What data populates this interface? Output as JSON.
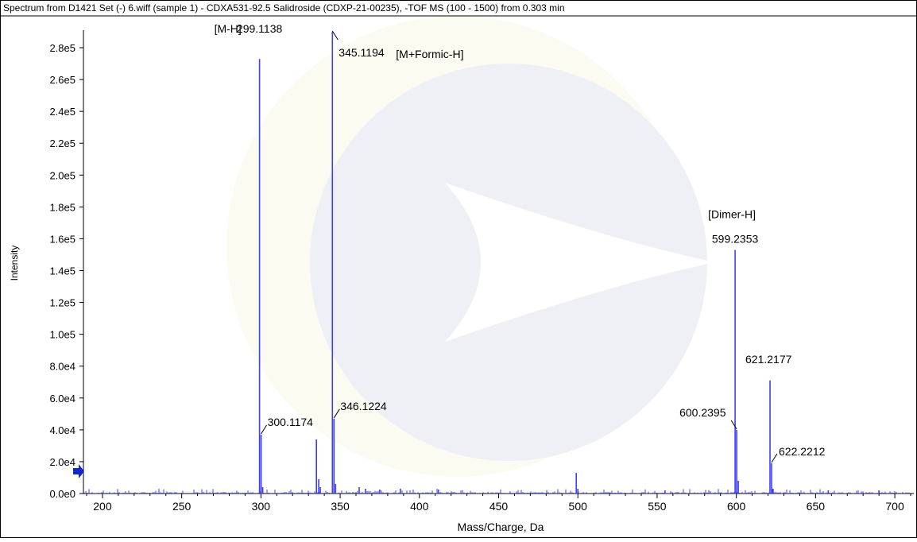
{
  "header": {
    "title": "Spectrum from D1421 Set (-) 6.wiff (sample 1) - CDXA531-92.5 Salidroside (CDXP-21-00235), -TOF MS (100 - 1500) from 0.303 min"
  },
  "colors": {
    "peak": "#3d3dff",
    "axis": "#000000",
    "text": "#000000",
    "marker": "#1428c8",
    "watermark": "#eef0f6"
  },
  "chart_data": {
    "type": "bar",
    "title": "",
    "xlabel": "Mass/Charge, Da",
    "ylabel": "Intensity",
    "xlim": [
      188,
      712
    ],
    "ylim": [
      0,
      290000
    ],
    "grid": false,
    "x_ticks": [
      200,
      250,
      300,
      350,
      400,
      450,
      500,
      550,
      600,
      650,
      700
    ],
    "y_ticks": [
      {
        "value": 0,
        "label": "0.0e0"
      },
      {
        "value": 20000,
        "label": "2.0e4"
      },
      {
        "value": 40000,
        "label": "4.0e4"
      },
      {
        "value": 60000,
        "label": "6.0e4"
      },
      {
        "value": 80000,
        "label": "8.0e4"
      },
      {
        "value": 100000,
        "label": "1.0e5"
      },
      {
        "value": 120000,
        "label": "1.2e5"
      },
      {
        "value": 140000,
        "label": "1.4e5"
      },
      {
        "value": 160000,
        "label": "1.6e5"
      },
      {
        "value": 180000,
        "label": "1.8e5"
      },
      {
        "value": 200000,
        "label": "2.0e5"
      },
      {
        "value": 220000,
        "label": "2.2e5"
      },
      {
        "value": 240000,
        "label": "2.4e5"
      },
      {
        "value": 260000,
        "label": "2.6e5"
      },
      {
        "value": 280000,
        "label": "2.8e5"
      }
    ],
    "marker_level": 14000,
    "peaks": [
      {
        "mz": 299.1138,
        "intensity": 273000
      },
      {
        "mz": 300.1174,
        "intensity": 37000
      },
      {
        "mz": 301.12,
        "intensity": 4000
      },
      {
        "mz": 335.0,
        "intensity": 34000
      },
      {
        "mz": 336.5,
        "intensity": 9000
      },
      {
        "mz": 337.5,
        "intensity": 4000
      },
      {
        "mz": 345.1194,
        "intensity": 290000
      },
      {
        "mz": 346.1224,
        "intensity": 47000
      },
      {
        "mz": 347.13,
        "intensity": 6000
      },
      {
        "mz": 362.0,
        "intensity": 4000
      },
      {
        "mz": 366.0,
        "intensity": 3000
      },
      {
        "mz": 375.0,
        "intensity": 2500
      },
      {
        "mz": 388.0,
        "intensity": 3000
      },
      {
        "mz": 412.0,
        "intensity": 2500
      },
      {
        "mz": 499.0,
        "intensity": 13000
      },
      {
        "mz": 500.0,
        "intensity": 3000
      },
      {
        "mz": 555.0,
        "intensity": 2000
      },
      {
        "mz": 599.2353,
        "intensity": 153000
      },
      {
        "mz": 600.2395,
        "intensity": 40000
      },
      {
        "mz": 601.24,
        "intensity": 8000
      },
      {
        "mz": 621.2177,
        "intensity": 71000
      },
      {
        "mz": 622.2212,
        "intensity": 19000
      },
      {
        "mz": 623.22,
        "intensity": 3000
      },
      {
        "mz": 658.0,
        "intensity": 2000
      },
      {
        "mz": 690.0,
        "intensity": 2000
      }
    ],
    "annotations": [
      {
        "text": "299.1138",
        "mz": 299.1138,
        "intensity": 273000
      },
      {
        "text": "[M-H]",
        "mz": 299.1138,
        "intensity": 273000
      },
      {
        "text": "300.1174",
        "mz": 300.1174,
        "intensity": 37000
      },
      {
        "text": "345.1194",
        "mz": 345.1194,
        "intensity": 290000
      },
      {
        "text": "[M+Formic-H]",
        "mz": 345.1194,
        "intensity": 290000
      },
      {
        "text": "346.1224",
        "mz": 346.1224,
        "intensity": 47000
      },
      {
        "text": "[Dimer-H]",
        "mz": 599.2353,
        "intensity": 153000
      },
      {
        "text": "599.2353",
        "mz": 599.2353,
        "intensity": 153000
      },
      {
        "text": "600.2395",
        "mz": 600.2395,
        "intensity": 40000
      },
      {
        "text": "621.2177",
        "mz": 621.2177,
        "intensity": 71000
      },
      {
        "text": "622.2212",
        "mz": 622.2212,
        "intensity": 19000
      }
    ]
  }
}
